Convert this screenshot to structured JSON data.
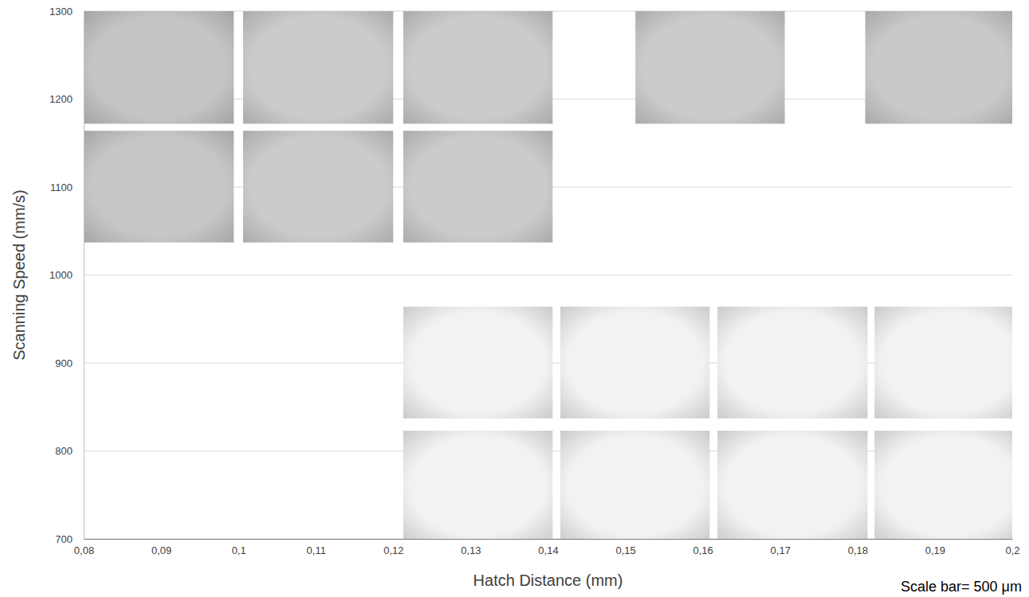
{
  "chart_data": {
    "type": "tile",
    "x_label": "Hatch Distance (mm)",
    "y_label": "Scanning Speed (mm/s)",
    "annotation": "Scale bar= 500 μm",
    "xlim": [
      0.08,
      0.2
    ],
    "ylim": [
      700,
      1300
    ],
    "xticks": [
      {
        "value": 0.08,
        "label": "0,08"
      },
      {
        "value": 0.09,
        "label": "0,09"
      },
      {
        "value": 0.1,
        "label": "0,1"
      },
      {
        "value": 0.11,
        "label": "0,11"
      },
      {
        "value": 0.12,
        "label": "0,12"
      },
      {
        "value": 0.13,
        "label": "0,13"
      },
      {
        "value": 0.14,
        "label": "0,14"
      },
      {
        "value": 0.15,
        "label": "0,15"
      },
      {
        "value": 0.16,
        "label": "0,16"
      },
      {
        "value": 0.17,
        "label": "0,17"
      },
      {
        "value": 0.18,
        "label": "0,18"
      },
      {
        "value": 0.19,
        "label": "0,19"
      },
      {
        "value": 0.2,
        "label": "0,2"
      }
    ],
    "yticks": [
      700,
      800,
      900,
      1000,
      1100,
      1200,
      1300
    ],
    "grid": true,
    "x0": [
      0.08,
      0.1006,
      0.1213,
      0.1513,
      0.181,
      0.08,
      0.1006,
      0.1213,
      0.1213,
      0.1416,
      0.1619,
      0.1822,
      0.1213,
      0.1416,
      0.1619,
      0.1822
    ],
    "x1": [
      0.0994,
      0.12,
      0.1406,
      0.1706,
      0.2003,
      0.0994,
      0.12,
      0.1406,
      0.1406,
      0.1609,
      0.1813,
      0.2015,
      0.1406,
      0.1609,
      0.1813,
      0.2015
    ],
    "y0": [
      1172,
      1172,
      1172,
      1172,
      1172,
      1037,
      1037,
      1037,
      837,
      837,
      837,
      837,
      697,
      697,
      697,
      697
    ],
    "y1": [
      1300,
      1300,
      1300,
      1300,
      1300,
      1164,
      1164,
      1164,
      964,
      964,
      964,
      964,
      823,
      823,
      823,
      823
    ],
    "colors": [
      "#c4c4c4",
      "#cbcbcb",
      "#cbcbcb",
      "#cbcbcb",
      "#c9c9c9",
      "#c6c6c6",
      "#cbcbcb",
      "#cbcbcb",
      "#f2f2f2",
      "#f2f2f2",
      "#f2f2f2",
      "#f2f2f2",
      "#f2f2f2",
      "#f2f2f2",
      "#f2f2f2",
      "#f2f2f2"
    ]
  }
}
